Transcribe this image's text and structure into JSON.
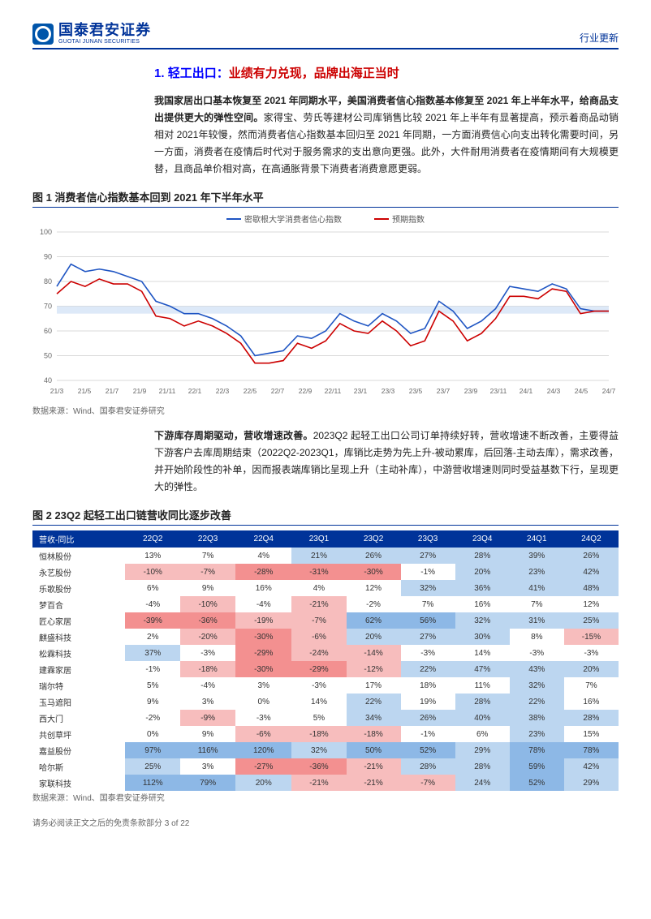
{
  "logo": {
    "cn": "国泰君安证券",
    "en": "GUOTAI JUNAN SECURITIES"
  },
  "doc_type": "行业更新",
  "section_num": "1.",
  "section_title_main": "轻工出口：",
  "section_title_sub": "业绩有力兑现，品牌出海正当时",
  "para1_bold": "我国家居出口基本恢复至 2021 年同期水平，美国消费者信心指数基本修复至 2021 年上半年水平，给商品支出提供更大的弹性空间。",
  "para1_rest": "家得宝、劳氏等建材公司库销售比较 2021 年上半年有显著提高，预示着商品动销相对 2021年较慢，然而消费者信心指数基本回归至 2021 年同期，一方面消费信心向支出转化需要时间，另一方面，消费者在疫情后时代对于服务需求的支出意向更强。此外，大件耐用消费者在疫情期间有大规模更替，且商品单价相对高，在高通胀背景下消费者消费意愿更弱。",
  "fig1_title": "图 1 消费者信心指数基本回到 2021 年下半年水平",
  "chart1": {
    "series1": {
      "name": "密歇根大学消费者信心指数",
      "color": "#1f55c3"
    },
    "series2": {
      "name": "预期指数",
      "color": "#cc0000"
    },
    "ylim": [
      40,
      100
    ],
    "yticks": [
      40,
      50,
      60,
      70,
      80,
      90,
      100
    ],
    "xlabels": [
      "21/3",
      "21/5",
      "21/7",
      "21/9",
      "21/11",
      "22/1",
      "22/3",
      "22/5",
      "22/7",
      "22/9",
      "22/11",
      "23/1",
      "23/3",
      "23/5",
      "23/7",
      "23/9",
      "23/11",
      "24/1",
      "24/3",
      "24/5",
      "24/7"
    ],
    "grid_color": "#d9d9d9",
    "band_color": "#cfe0f5",
    "band_range": [
      67,
      70
    ],
    "series1_data": [
      78,
      87,
      84,
      85,
      84,
      82,
      80,
      72,
      70,
      67,
      67,
      65,
      62,
      58,
      50,
      51,
      52,
      58,
      57,
      60,
      67,
      64,
      62,
      67,
      64,
      59,
      61,
      72,
      68,
      61,
      64,
      69,
      78,
      77,
      76,
      79,
      77,
      69,
      68,
      68
    ],
    "series2_data": [
      75,
      80,
      78,
      81,
      79,
      79,
      76,
      66,
      65,
      62,
      64,
      62,
      59,
      55,
      47,
      47,
      48,
      55,
      53,
      56,
      63,
      60,
      59,
      64,
      60,
      54,
      56,
      68,
      64,
      56,
      59,
      65,
      74,
      74,
      73,
      77,
      76,
      67,
      68,
      68
    ]
  },
  "data_source": "数据来源：Wind、国泰君安证券研究",
  "para2_bold": "下游库存周期驱动，营收增速改善。",
  "para2_rest": "2023Q2 起轻工出口公司订单持续好转，营收增速不断改善，主要得益下游客户去库周期结束（2022Q2-2023Q1，库销比走势为先上升-被动累库，后回落-主动去库），需求改善，并开始阶段性的补单，因而报表端库销比呈现上升（主动补库），中游营收增速则同时受益基数下行，呈现更大的弹性。",
  "fig2_title": "图 2 23Q2 起轻工出口链营收同比逐步改善",
  "table": {
    "header_bg": "#003399",
    "header_color": "#ffffff",
    "heat_neg": "#f7bdbd",
    "heat_neg2": "#f39090",
    "heat_pos": "#bcd6f0",
    "heat_pos2": "#8db8e6",
    "columns": [
      "营收-同比",
      "22Q2",
      "22Q3",
      "22Q4",
      "23Q1",
      "23Q2",
      "23Q3",
      "23Q4",
      "24Q1",
      "24Q2"
    ],
    "rows": [
      {
        "name": "恒林股份",
        "vals": [
          "13%",
          "7%",
          "4%",
          "21%",
          "26%",
          "27%",
          "28%",
          "39%",
          "26%"
        ]
      },
      {
        "name": "永艺股份",
        "vals": [
          "-10%",
          "-7%",
          "-28%",
          "-31%",
          "-30%",
          "-1%",
          "20%",
          "23%",
          "42%"
        ]
      },
      {
        "name": "乐歌股份",
        "vals": [
          "6%",
          "9%",
          "16%",
          "4%",
          "12%",
          "32%",
          "36%",
          "41%",
          "48%"
        ]
      },
      {
        "name": "梦百合",
        "vals": [
          "-4%",
          "-10%",
          "-4%",
          "-21%",
          "-2%",
          "7%",
          "16%",
          "7%",
          "12%"
        ]
      },
      {
        "name": "匠心家居",
        "vals": [
          "-39%",
          "-36%",
          "-19%",
          "-7%",
          "62%",
          "56%",
          "32%",
          "31%",
          "25%"
        ]
      },
      {
        "name": "麒盛科技",
        "vals": [
          "2%",
          "-20%",
          "-30%",
          "-6%",
          "20%",
          "27%",
          "30%",
          "8%",
          "-15%"
        ]
      },
      {
        "name": "松霖科技",
        "vals": [
          "37%",
          "-3%",
          "-29%",
          "-24%",
          "-14%",
          "-3%",
          "14%",
          "-3%",
          "-3%"
        ]
      },
      {
        "name": "建霖家居",
        "vals": [
          "-1%",
          "-18%",
          "-30%",
          "-29%",
          "-12%",
          "22%",
          "47%",
          "43%",
          "20%"
        ]
      },
      {
        "name": "瑞尔特",
        "vals": [
          "5%",
          "-4%",
          "3%",
          "-3%",
          "17%",
          "18%",
          "11%",
          "32%",
          "7%"
        ]
      },
      {
        "name": "玉马遮阳",
        "vals": [
          "9%",
          "3%",
          "0%",
          "14%",
          "22%",
          "19%",
          "28%",
          "22%",
          "16%"
        ]
      },
      {
        "name": "西大门",
        "vals": [
          "-2%",
          "-9%",
          "-3%",
          "5%",
          "34%",
          "26%",
          "40%",
          "38%",
          "28%"
        ]
      },
      {
        "name": "共创草坪",
        "vals": [
          "0%",
          "9%",
          "-6%",
          "-18%",
          "-18%",
          "-1%",
          "6%",
          "23%",
          "15%"
        ]
      },
      {
        "name": "嘉益股份",
        "vals": [
          "97%",
          "116%",
          "120%",
          "32%",
          "50%",
          "52%",
          "29%",
          "78%",
          "78%"
        ]
      },
      {
        "name": "哈尔斯",
        "vals": [
          "25%",
          "3%",
          "-27%",
          "-36%",
          "-21%",
          "28%",
          "28%",
          "59%",
          "42%"
        ]
      },
      {
        "name": "家联科技",
        "vals": [
          "112%",
          "79%",
          "20%",
          "-21%",
          "-21%",
          "-7%",
          "24%",
          "52%",
          "29%"
        ]
      }
    ]
  },
  "footer": "请务必阅读正文之后的免责条款部分 3 of 22"
}
